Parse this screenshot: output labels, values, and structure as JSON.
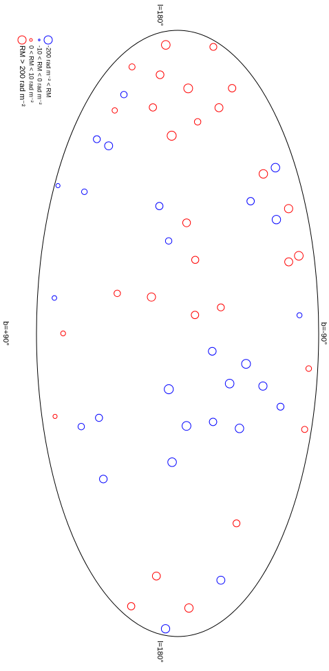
{
  "chart_data": {
    "type": "scatter",
    "labels": {
      "top": "l=180°",
      "bottom": "l=180°",
      "left": "b=+90°",
      "right": "b=-90°"
    },
    "legend": [
      "RM > 200 rad m⁻²",
      "0 < RM < 10 rad m⁻²",
      "-10 < RM < 0 rad m⁻²",
      "-200 rad m⁻² < RM"
    ],
    "positive_color": "#ff0000",
    "negative_color": "#0000ff",
    "l": [
      170,
      150,
      140,
      130,
      120,
      110,
      175,
      165,
      155,
      145,
      135,
      140,
      125,
      150,
      115,
      120,
      100,
      130,
      90,
      110,
      140,
      80,
      70,
      60,
      50,
      40,
      20,
      10,
      25,
      15,
      -10,
      -20,
      -30,
      -40,
      -50,
      -60,
      -70,
      -30,
      -50,
      -70,
      -60,
      -80,
      -100,
      -140,
      -160,
      -170,
      -150,
      -120,
      -175,
      0,
      60,
      -120,
      170,
      30,
      -90,
      -150
    ],
    "b": [
      5,
      8,
      -5,
      12,
      -10,
      3,
      -15,
      20,
      -25,
      30,
      -20,
      40,
      35,
      25,
      50,
      -45,
      -55,
      -60,
      -40,
      -70,
      -50,
      -65,
      10,
      -5,
      5,
      -10,
      15,
      -10,
      35,
      -25,
      -20,
      -40,
      -30,
      -50,
      -20,
      -35,
      -60,
      5,
      -5,
      3,
      45,
      55,
      40,
      10,
      -5,
      20,
      -20,
      -30,
      5,
      70,
      75,
      70,
      60,
      -75,
      -80,
      -70
    ],
    "rm": [
      250,
      120,
      300,
      80,
      40,
      350,
      60,
      30,
      90,
      15,
      150,
      -60,
      -150,
      -40,
      -20,
      220,
      -210,
      180,
      -90,
      260,
      -230,
      150,
      -80,
      120,
      -40,
      70,
      180,
      90,
      40,
      60,
      -120,
      -300,
      -250,
      -180,
      -90,
      -220,
      -60,
      -350,
      -280,
      -240,
      -70,
      -40,
      -110,
      140,
      200,
      80,
      -150,
      60,
      -200,
      10,
      -8,
      5,
      -5,
      -12,
      20,
      30
    ]
  }
}
